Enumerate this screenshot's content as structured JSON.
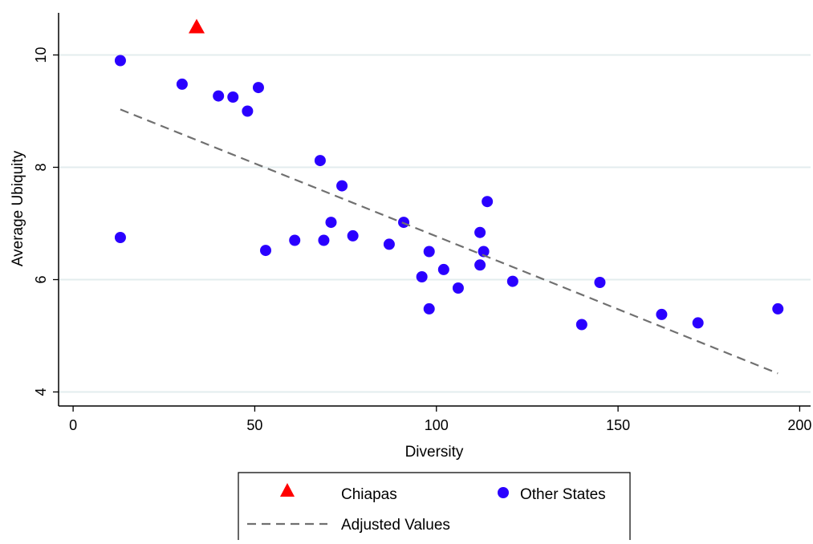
{
  "chart_data": {
    "type": "scatter",
    "xlabel": "Diversity",
    "ylabel": "Average Ubiquity",
    "xlim": [
      -4,
      203
    ],
    "ylim": [
      3.75,
      10.75
    ],
    "xticks": [
      0,
      50,
      100,
      150,
      200
    ],
    "yticks": [
      4,
      6,
      8,
      10
    ],
    "grid": "horizontal",
    "legend_placement": "bottom",
    "series": [
      {
        "name": "Chiapas",
        "marker": "triangle",
        "color": "#ff0000",
        "points": [
          [
            34,
            10.5
          ]
        ]
      },
      {
        "name": "Other States",
        "marker": "circle",
        "color": "#2a00ff",
        "points": [
          [
            13,
            9.9
          ],
          [
            13,
            6.75
          ],
          [
            30,
            9.48
          ],
          [
            40,
            9.27
          ],
          [
            44,
            9.25
          ],
          [
            48,
            9.0
          ],
          [
            51,
            9.42
          ],
          [
            53,
            6.52
          ],
          [
            61,
            6.7
          ],
          [
            68,
            8.12
          ],
          [
            69,
            6.7
          ],
          [
            71,
            7.02
          ],
          [
            74,
            7.67
          ],
          [
            77,
            6.78
          ],
          [
            87,
            6.63
          ],
          [
            91,
            7.02
          ],
          [
            96,
            6.05
          ],
          [
            98,
            6.5
          ],
          [
            98,
            5.48
          ],
          [
            102,
            6.18
          ],
          [
            106,
            5.85
          ],
          [
            112,
            6.84
          ],
          [
            112,
            6.26
          ],
          [
            113,
            6.5
          ],
          [
            114,
            7.39
          ],
          [
            121,
            5.97
          ],
          [
            140,
            5.2
          ],
          [
            145,
            5.95
          ],
          [
            162,
            5.38
          ],
          [
            172,
            5.23
          ],
          [
            194,
            5.48
          ]
        ]
      },
      {
        "name": "Adjusted Values",
        "type": "line",
        "style": "dashed",
        "color": "#707070",
        "points": [
          [
            13,
            9.03
          ],
          [
            194,
            4.33
          ]
        ]
      }
    ]
  },
  "legend": {
    "items": [
      {
        "label": "Chiapas",
        "symbol": "red-triangle-icon"
      },
      {
        "label": "Other States",
        "symbol": "blue-circle-icon"
      },
      {
        "label": "Adjusted Values",
        "symbol": "dashed-line-icon"
      }
    ]
  }
}
